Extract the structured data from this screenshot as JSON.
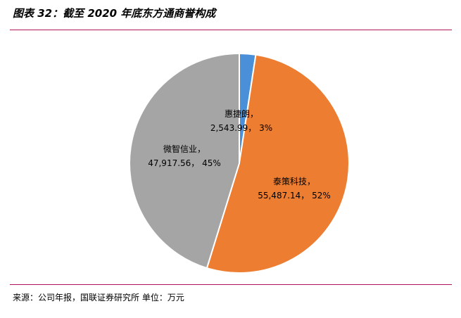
{
  "figure": {
    "title": "图表 32：截至 2020 年底东方通商誉构成",
    "source": "来源：公司年报，国联证券研究所   单位：万元"
  },
  "chart_data": {
    "type": "pie",
    "title": "",
    "unit": "万元",
    "start_angle_deg": 0,
    "direction": "clockwise",
    "slices": [
      {
        "name": "惠捷朗",
        "value": 2543.99,
        "value_label": "2,543.99",
        "percent": "3%",
        "color": "#4a90d9"
      },
      {
        "name": "泰策科技",
        "value": 55487.14,
        "value_label": "55,487.14",
        "percent": "52%",
        "color": "#ed7d31"
      },
      {
        "name": "微智信业",
        "value": 47917.56,
        "value_label": "47,917.56",
        "percent": "45%",
        "color": "#a5a5a5"
      }
    ]
  }
}
